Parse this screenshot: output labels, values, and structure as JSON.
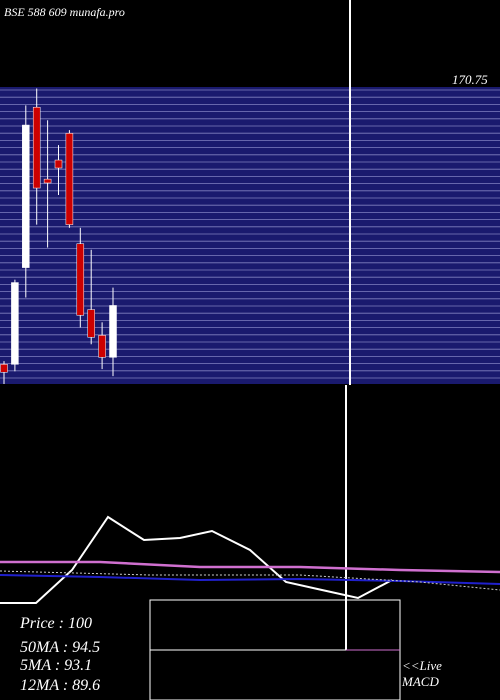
{
  "chart_data": {
    "type": "candlestick",
    "title": "BSE 588   609 munafa.pro",
    "categories": [
      null,
      null,
      null,
      null,
      null,
      null,
      null,
      null,
      null,
      null,
      null
    ],
    "series": [
      {
        "name": "open",
        "values": [
          81.5,
          81.5,
          111.9,
          162.3,
          139.7,
          145.7,
          154.1,
          119.4,
          98.7,
          90.6,
          83.7
        ]
      },
      {
        "name": "high",
        "values": [
          82.5,
          108.1,
          162.9,
          168.2,
          158.2,
          150.4,
          155.1,
          124.4,
          117.5,
          94.7,
          105.6
        ]
      },
      {
        "name": "low",
        "values": [
          75.3,
          79.3,
          102.5,
          125.4,
          118.2,
          134.7,
          124.4,
          93.1,
          87.8,
          80.0,
          77.8
        ]
      },
      {
        "name": "close",
        "values": [
          79.0,
          107.2,
          156.7,
          136.9,
          138.5,
          143.2,
          125.4,
          96.9,
          90.0,
          83.7,
          100
        ]
      }
    ],
    "up_color": "#ffffff",
    "down_color": "#cc0000",
    "band_color": "#1a1a6e",
    "ylim": [
      75,
      196
    ],
    "annotations": [
      "170.75",
      "<<Live",
      "MACD"
    ],
    "stats": [
      "Price   : 100",
      "50MA : 94.5",
      "5MA : 93.1",
      "12MA : 89.6"
    ]
  }
}
